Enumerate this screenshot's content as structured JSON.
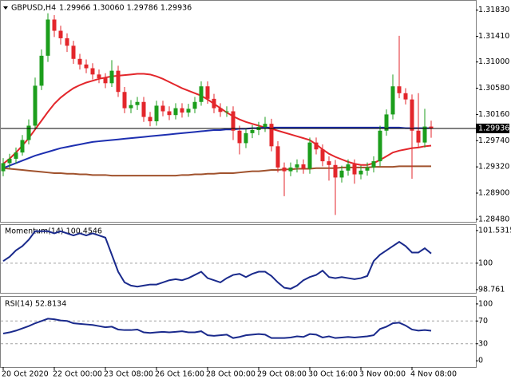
{
  "chart_data": [
    {
      "type": "candlestick",
      "title": "GBPUSD,H4",
      "subtitle": "1.29966 1.30060 1.29786 1.29936",
      "categories": [
        "20 Oct 2020",
        null,
        null,
        null,
        null,
        null,
        null,
        null,
        "22 Oct 00:00",
        null,
        null,
        null,
        null,
        null,
        null,
        null,
        "23 Oct 08:00",
        null,
        null,
        null,
        null,
        null,
        null,
        null,
        "26 Oct 16:00",
        null,
        null,
        null,
        null,
        null,
        null,
        null,
        "28 Oct 00:00",
        null,
        null,
        null,
        null,
        null,
        null,
        null,
        "29 Oct 08:00",
        null,
        null,
        null,
        null,
        null,
        null,
        null,
        "30 Oct 16:00",
        null,
        null,
        null,
        null,
        null,
        null,
        null,
        "3 Nov 00:00",
        null,
        null,
        null,
        null,
        null,
        null,
        null,
        "4 Nov 08:00",
        null,
        null,
        null
      ],
      "open": [
        1.2925,
        1.2938,
        1.2945,
        1.2955,
        1.2975,
        1.2998,
        1.3062,
        1.311,
        1.3168,
        1.315,
        1.3138,
        1.3126,
        1.3105,
        1.3096,
        1.309,
        1.308,
        1.3074,
        1.3066,
        1.3086,
        1.3052,
        1.3026,
        1.3031,
        1.3036,
        1.3012,
        1.3005,
        1.303,
        1.3021,
        1.3015,
        1.3026,
        1.3019,
        1.3025,
        1.3036,
        1.3061,
        1.3041,
        1.3026,
        1.302,
        1.3021,
        1.299,
        1.297,
        1.2986,
        1.2991,
        1.2996,
        1.3001,
        1.2965,
        1.2931,
        1.2925,
        1.2931,
        1.2936,
        1.2929,
        1.2971,
        1.296,
        1.2941,
        1.2935,
        1.2915,
        1.2926,
        1.2936,
        1.292,
        1.2926,
        1.2931,
        1.2941,
        1.299,
        1.3016,
        1.3061,
        1.305,
        1.304,
        1.299,
        1.2971,
        1.29966
      ],
      "high": [
        1.2946,
        1.2953,
        1.2963,
        1.2983,
        1.3008,
        1.3075,
        1.312,
        1.3178,
        1.3175,
        1.3158,
        1.3146,
        1.3134,
        1.3113,
        1.3104,
        1.3098,
        1.3088,
        1.3082,
        1.3103,
        1.3094,
        1.306,
        1.3039,
        1.3044,
        1.3044,
        1.302,
        1.3038,
        1.3038,
        1.3029,
        1.3034,
        1.3034,
        1.3033,
        1.3044,
        1.3069,
        1.3069,
        1.3049,
        1.3034,
        1.3029,
        1.3029,
        1.2998,
        1.2994,
        1.2999,
        1.3004,
        1.3012,
        1.3009,
        1.2973,
        1.2939,
        1.2939,
        1.2944,
        1.2944,
        1.2979,
        1.2979,
        1.2968,
        1.2949,
        1.2943,
        1.2934,
        1.2944,
        1.2944,
        1.2934,
        1.2939,
        1.2949,
        1.2998,
        1.3024,
        1.308,
        1.3142,
        1.3058,
        1.3048,
        1.305,
        1.3025,
        1.3006
      ],
      "low": [
        1.2917,
        1.293,
        1.2937,
        1.295,
        1.2968,
        1.2992,
        1.3055,
        1.31,
        1.314,
        1.3128,
        1.3116,
        1.3097,
        1.3088,
        1.3082,
        1.3072,
        1.3066,
        1.3058,
        1.306,
        1.3044,
        1.3018,
        1.3018,
        1.3023,
        1.3004,
        1.2997,
        1.2998,
        1.3013,
        1.3007,
        1.3008,
        1.3011,
        1.3012,
        1.3018,
        1.303,
        1.3033,
        1.3018,
        1.3012,
        1.3012,
        1.2975,
        1.2952,
        1.2962,
        1.2978,
        1.2983,
        1.2988,
        1.2957,
        1.2923,
        1.2885,
        1.2917,
        1.2923,
        1.2921,
        1.2921,
        1.2952,
        1.2933,
        1.291,
        1.2855,
        1.2907,
        1.2918,
        1.2905,
        1.2912,
        1.2918,
        1.2923,
        1.2933,
        1.2982,
        1.3008,
        1.3042,
        1.3032,
        1.2913,
        1.2963,
        1.2963,
        1.29786
      ],
      "close": [
        1.2938,
        1.2945,
        1.2955,
        1.2975,
        1.2998,
        1.3062,
        1.311,
        1.3168,
        1.315,
        1.3138,
        1.3126,
        1.3105,
        1.3096,
        1.309,
        1.308,
        1.3074,
        1.3066,
        1.3086,
        1.3052,
        1.3026,
        1.3031,
        1.3036,
        1.3012,
        1.3005,
        1.303,
        1.3021,
        1.3015,
        1.3026,
        1.3019,
        1.3025,
        1.3036,
        1.3061,
        1.3041,
        1.3026,
        1.302,
        1.3021,
        1.299,
        1.297,
        1.2986,
        1.2991,
        1.2996,
        1.3001,
        1.2965,
        1.2931,
        1.2925,
        1.2931,
        1.2936,
        1.2929,
        1.2971,
        1.296,
        1.2941,
        1.2935,
        1.2915,
        1.2926,
        1.2936,
        1.292,
        1.2926,
        1.2931,
        1.2941,
        1.299,
        1.3016,
        1.3061,
        1.305,
        1.304,
        1.299,
        1.2971,
        1.29966,
        1.29936
      ],
      "up_color": "#1c9e1c",
      "down_color": "#e3262b",
      "series": [
        {
          "color": "#e3262b",
          "values": [
            1.2937,
            1.2945,
            1.2955,
            1.2966,
            1.2978,
            1.2992,
            1.3006,
            1.302,
            1.3033,
            1.3043,
            1.3051,
            1.3058,
            1.3063,
            1.3067,
            1.307,
            1.3073,
            1.3075,
            1.3077,
            1.3078,
            1.3079,
            1.308,
            1.3081,
            1.3081,
            1.308,
            1.3077,
            1.3073,
            1.3068,
            1.3063,
            1.3058,
            1.3054,
            1.305,
            1.3046,
            1.304,
            1.3033,
            1.3026,
            1.3019,
            1.3013,
            1.3008,
            1.3004,
            1.3001,
            1.2998,
            1.2995,
            1.2993,
            1.299,
            1.2987,
            1.2984,
            1.2981,
            1.2978,
            1.2975,
            1.2968,
            1.296,
            1.2953,
            1.2948,
            1.2944,
            1.294,
            1.2937,
            1.2935,
            1.2935,
            1.2938,
            1.2943,
            1.2949,
            1.2955,
            1.2958,
            1.296,
            1.2962,
            1.2963,
            1.2965,
            1.2966
          ]
        },
        {
          "color": "#1d2fb0",
          "values": [
            1.293,
            1.2934,
            1.2938,
            1.2942,
            1.2946,
            1.295,
            1.2953,
            1.2956,
            1.2959,
            1.2962,
            1.2964,
            1.2966,
            1.2968,
            1.297,
            1.2972,
            1.2973,
            1.2974,
            1.2975,
            1.2976,
            1.2977,
            1.2978,
            1.2979,
            1.298,
            1.2981,
            1.2982,
            1.2983,
            1.2984,
            1.2985,
            1.2986,
            1.2987,
            1.2988,
            1.2989,
            1.299,
            1.2991,
            1.2991,
            1.2992,
            1.2992,
            1.2993,
            1.2993,
            1.2994,
            1.2994,
            1.2995,
            1.2995,
            1.2995,
            1.2995,
            1.2995,
            1.2995,
            1.2995,
            1.2995,
            1.2995,
            1.2995,
            1.2995,
            1.2995,
            1.2995,
            1.2995,
            1.2995,
            1.2995,
            1.2995,
            1.2995,
            1.2995,
            1.2995,
            1.2995,
            1.2995,
            1.2994,
            1.2994,
            1.2994,
            1.2994,
            1.2994
          ]
        },
        {
          "color": "#a0522d",
          "values": [
            1.293,
            1.2929,
            1.2928,
            1.2927,
            1.2926,
            1.2925,
            1.2924,
            1.2923,
            1.2922,
            1.2922,
            1.2921,
            1.2921,
            1.292,
            1.292,
            1.2919,
            1.2919,
            1.2919,
            1.2918,
            1.2918,
            1.2918,
            1.2918,
            1.2918,
            1.2918,
            1.2918,
            1.2918,
            1.2918,
            1.2918,
            1.2918,
            1.2919,
            1.2919,
            1.292,
            1.292,
            1.2921,
            1.2921,
            1.2922,
            1.2922,
            1.2922,
            1.2923,
            1.2924,
            1.2925,
            1.2925,
            1.2926,
            1.2927,
            1.2927,
            1.2928,
            1.2928,
            1.2929,
            1.2929,
            1.2929,
            1.293,
            1.293,
            1.293,
            1.293,
            1.2931,
            1.2931,
            1.2931,
            1.2931,
            1.2931,
            1.2932,
            1.2932,
            1.2932,
            1.2932,
            1.2933,
            1.2933,
            1.2933,
            1.2933,
            1.2933,
            1.2933
          ]
        }
      ],
      "last_price": {
        "value": 1.29936,
        "label": "1.29936"
      },
      "ylim": [
        1.2844,
        1.3198
      ],
      "yticks": [
        {
          "value": 1.3183,
          "label": "1.31830"
        },
        {
          "value": 1.3141,
          "label": "1.31410"
        },
        {
          "value": 1.31,
          "label": "1.31000"
        },
        {
          "value": 1.3058,
          "label": "1.30580"
        },
        {
          "value": 1.3016,
          "label": "1.30160"
        },
        {
          "value": 1.2974,
          "label": "1.29740"
        },
        {
          "value": 1.2932,
          "label": "1.29320"
        },
        {
          "value": 1.289,
          "label": "1.28900"
        },
        {
          "value": 1.2848,
          "label": "1.28480"
        }
      ]
    },
    {
      "type": "line",
      "title": "Momentum(14) 100.4546",
      "color": "#1a2a8c",
      "values": [
        100.1,
        100.3,
        100.6,
        100.8,
        101.1,
        101.5,
        101.5,
        101.5,
        101.4,
        101.5,
        101.4,
        101.3,
        101.4,
        101.3,
        101.4,
        101.3,
        101.2,
        100.4,
        99.6,
        99.1,
        98.95,
        98.9,
        98.95,
        99.0,
        99.0,
        99.1,
        99.2,
        99.25,
        99.2,
        99.3,
        99.45,
        99.6,
        99.3,
        99.2,
        99.1,
        99.3,
        99.45,
        99.5,
        99.35,
        99.5,
        99.6,
        99.6,
        99.4,
        99.1,
        98.85,
        98.8,
        98.95,
        99.2,
        99.35,
        99.45,
        99.65,
        99.35,
        99.3,
        99.35,
        99.3,
        99.25,
        99.3,
        99.4,
        100.1,
        100.4,
        100.6,
        100.8,
        101.0,
        100.8,
        100.5,
        100.5,
        100.7,
        100.4546
      ],
      "ylim": [
        98.61,
        101.79
      ],
      "yticks": [
        101.5315,
        100,
        98.761
      ],
      "levels": [
        100
      ]
    },
    {
      "type": "line",
      "title": "RSI(14) 52.8134",
      "color": "#1a2a8c",
      "values": [
        48,
        50,
        53,
        57,
        61,
        66,
        70,
        74,
        73,
        71,
        70,
        66,
        65,
        64,
        63,
        61,
        59,
        60,
        55,
        54,
        54,
        55,
        50,
        49,
        50,
        51,
        50,
        51,
        52,
        50,
        50,
        52,
        45,
        44,
        45,
        46,
        40,
        42,
        45,
        46,
        47,
        46,
        40,
        40,
        40,
        41,
        43,
        42,
        47,
        46,
        41,
        43,
        40,
        41,
        42,
        41,
        42,
        43,
        45,
        56,
        60,
        66,
        67,
        62,
        55,
        53,
        54,
        52.8134
      ],
      "ylim": [
        -11,
        112.5
      ],
      "yticks": [
        100,
        70,
        30,
        0
      ],
      "levels": [
        70,
        30
      ]
    }
  ]
}
